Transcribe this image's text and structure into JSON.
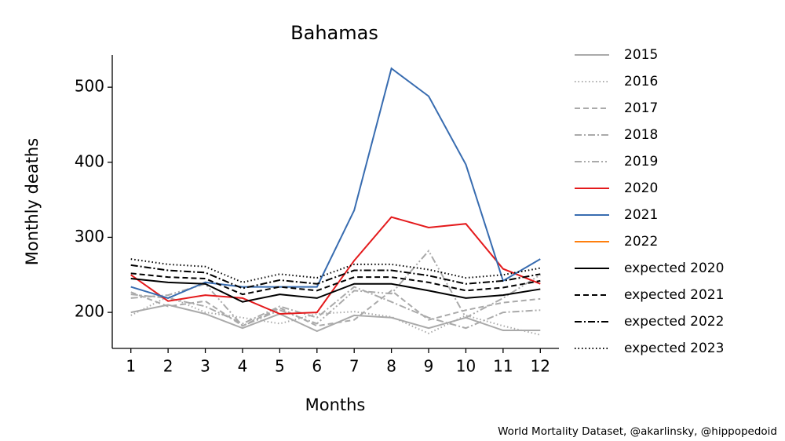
{
  "chart_data": {
    "type": "line",
    "title": "Bahamas",
    "xlabel": "Months",
    "ylabel": "Monthly deaths",
    "source": "World Mortality Dataset, @akarlinsky, @hippopedoid",
    "x": [
      1,
      2,
      3,
      4,
      5,
      6,
      7,
      8,
      9,
      10,
      11,
      12
    ],
    "xlim": [
      0.5,
      12.5
    ],
    "xticks": [
      1,
      2,
      3,
      4,
      5,
      6,
      7,
      8,
      9,
      10,
      11,
      12
    ],
    "ylim": [
      152,
      543
    ],
    "yticks": [
      200,
      300,
      400,
      500
    ],
    "legend": "outside-right",
    "series": [
      {
        "name": "2015",
        "color": "#aaaaaa",
        "dash": "solid",
        "values": [
          200,
          210,
          198,
          179,
          198,
          175,
          196,
          193,
          179,
          193,
          176,
          176
        ]
      },
      {
        "name": "2016",
        "color": "#aaaaaa",
        "dash": "dotted",
        "values": [
          196,
          221,
          200,
          193,
          185,
          198,
          201,
          194,
          172,
          196,
          182,
          170
        ]
      },
      {
        "name": "2017",
        "color": "#aaaaaa",
        "dash": "dashed",
        "values": [
          227,
          208,
          215,
          182,
          206,
          182,
          190,
          229,
          190,
          203,
          213,
          218
        ]
      },
      {
        "name": "2018",
        "color": "#aaaaaa",
        "dash": "dashdot",
        "values": [
          224,
          219,
          208,
          185,
          208,
          193,
          234,
          214,
          193,
          179,
          200,
          203
        ]
      },
      {
        "name": "2019",
        "color": "#aaaaaa",
        "dash": "dashdotdot",
        "values": [
          219,
          223,
          238,
          182,
          203,
          185,
          229,
          225,
          282,
          193,
          219,
          250
        ]
      },
      {
        "name": "2020",
        "color": "#e41a1c",
        "dash": "solid",
        "values": [
          250,
          215,
          223,
          219,
          198,
          200,
          269,
          327,
          313,
          318,
          258,
          238
        ]
      },
      {
        "name": "2021",
        "color": "#386cb0",
        "dash": "solid",
        "values": [
          234,
          219,
          240,
          234,
          234,
          234,
          336,
          525,
          488,
          397,
          242,
          271
        ]
      },
      {
        "name": "2022",
        "color": "#ff7f0e",
        "dash": "solid",
        "values": [
          null,
          null,
          null,
          null,
          null,
          null,
          null,
          null,
          null,
          null,
          null,
          null
        ]
      },
      {
        "name": "expected 2020",
        "color": "#000000",
        "dash": "solid",
        "values": [
          245,
          240,
          238,
          214,
          224,
          219,
          238,
          238,
          229,
          219,
          223,
          231
        ]
      },
      {
        "name": "expected 2021",
        "color": "#000000",
        "dash": "dashed",
        "values": [
          252,
          247,
          245,
          224,
          234,
          229,
          247,
          247,
          240,
          229,
          233,
          242
        ]
      },
      {
        "name": "expected 2022",
        "color": "#000000",
        "dash": "dashdot",
        "values": [
          263,
          256,
          253,
          232,
          243,
          238,
          256,
          256,
          249,
          238,
          242,
          251
        ]
      },
      {
        "name": "expected 2023",
        "color": "#000000",
        "dash": "dotted",
        "values": [
          271,
          264,
          261,
          240,
          251,
          246,
          264,
          264,
          257,
          246,
          250,
          259
        ]
      }
    ]
  }
}
